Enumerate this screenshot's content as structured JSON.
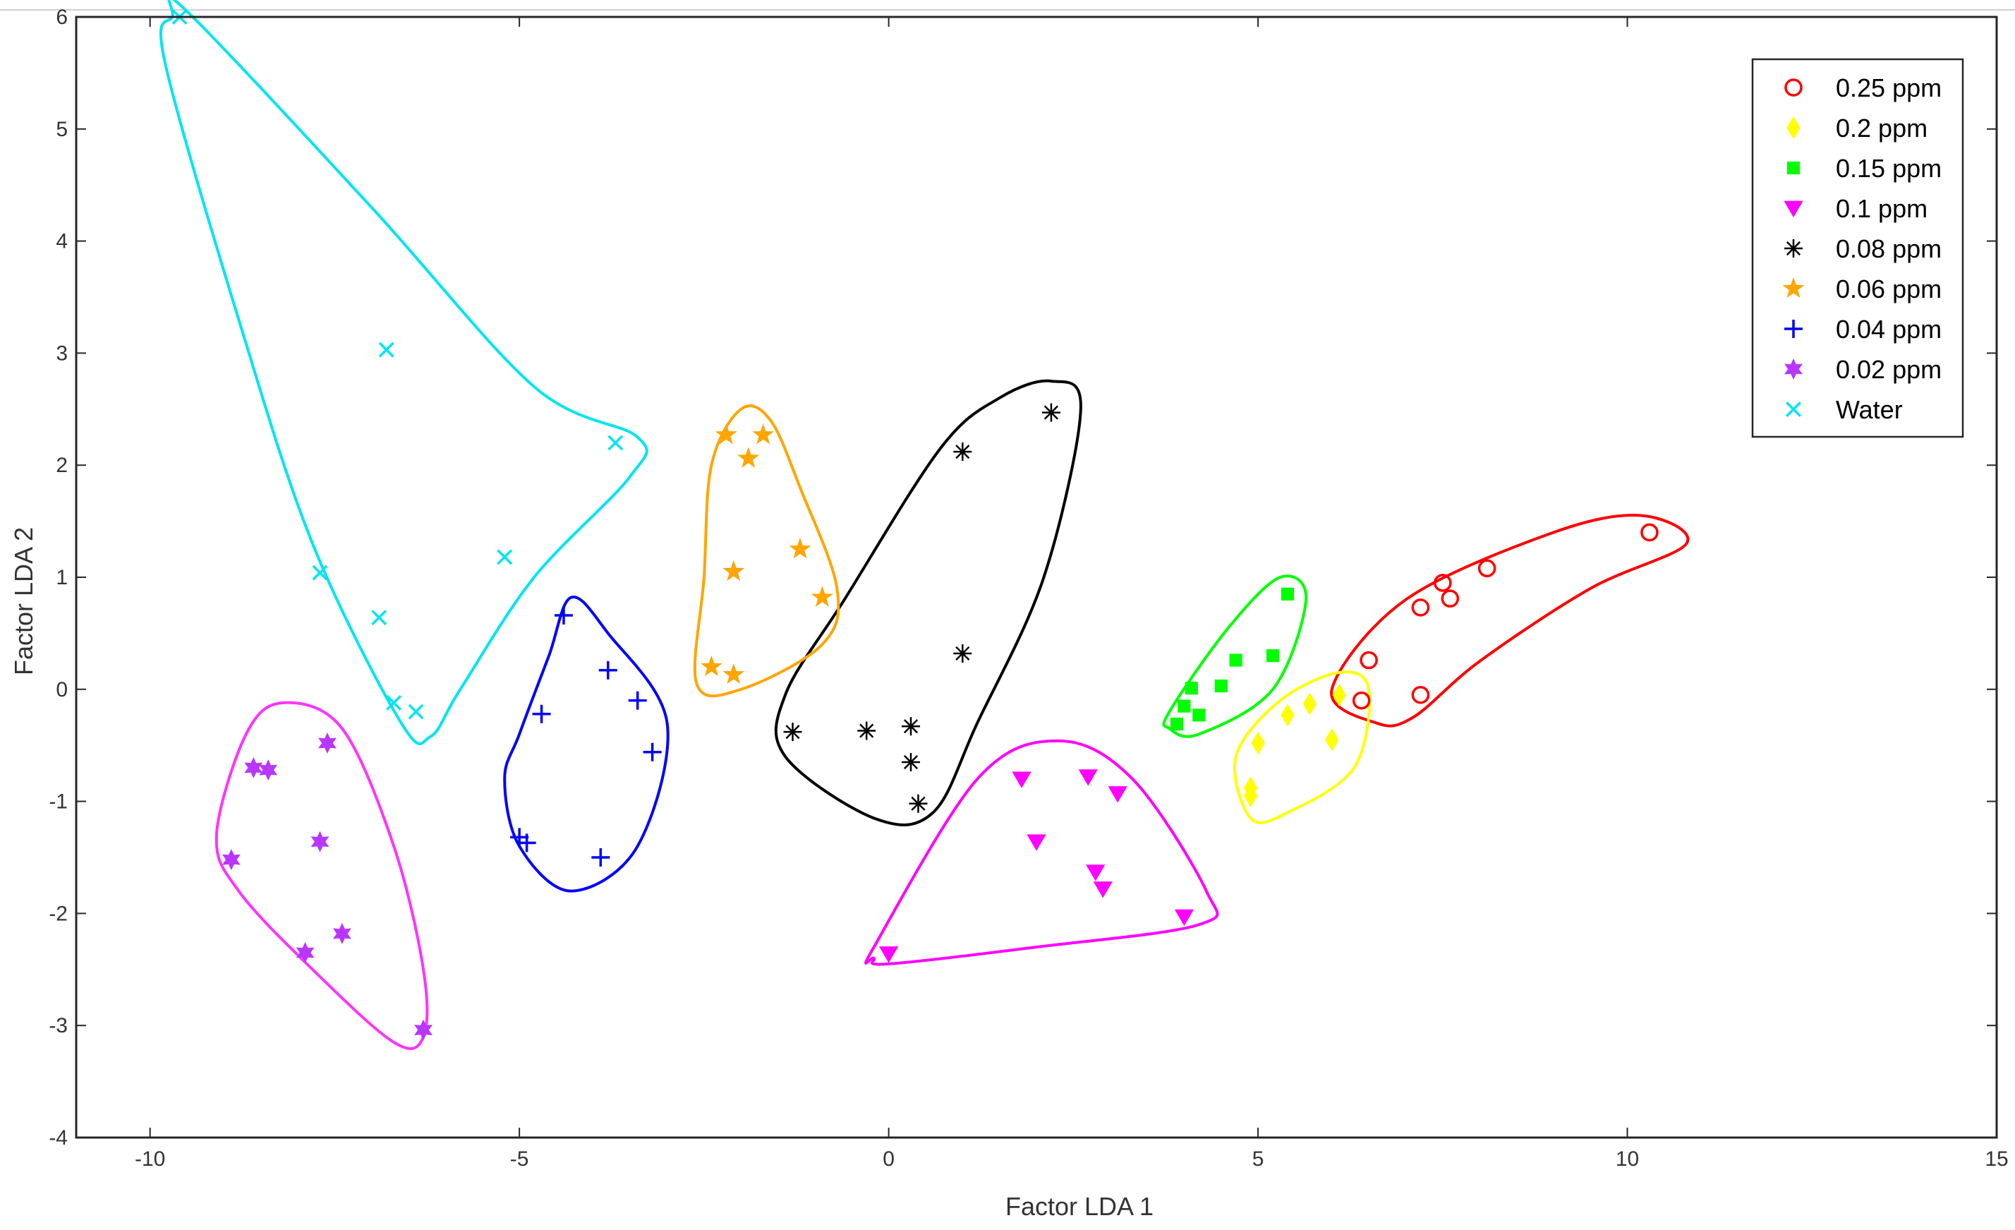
{
  "chart_data": {
    "type": "scatter",
    "xlabel": "Factor LDA 1",
    "ylabel": "Factor LDA 2",
    "xlim": [
      -11,
      15
    ],
    "ylim": [
      -4,
      6
    ],
    "xticks": [
      -10,
      -5,
      0,
      5,
      10,
      15
    ],
    "yticks": [
      -4,
      -3,
      -2,
      -1,
      0,
      1,
      2,
      3,
      4,
      5,
      6
    ],
    "xtick_labels": [
      "-10",
      "-5",
      "0",
      "5",
      "10",
      "15"
    ],
    "ytick_labels": [
      "-4",
      "-3",
      "-2",
      "-1",
      "0",
      "1",
      "2",
      "3",
      "4",
      "5",
      "6"
    ],
    "grid": false,
    "legend_position": "top-right",
    "series": [
      {
        "name": "0.25 ppm",
        "marker": "circle",
        "color": "#ff0000",
        "x": [
          10.3,
          8.1,
          7.5,
          7.6,
          7.2,
          6.5,
          6.4,
          7.2
        ],
        "y": [
          1.4,
          1.08,
          0.95,
          0.81,
          0.73,
          0.26,
          -0.1,
          -0.05
        ]
      },
      {
        "name": "0.2 ppm",
        "marker": "diamond",
        "color": "#ffff00",
        "x": [
          6.1,
          5.7,
          5.4,
          5.0,
          4.9,
          6.0,
          4.9
        ],
        "y": [
          -0.05,
          -0.13,
          -0.23,
          -0.48,
          -0.95,
          -0.45,
          -0.88
        ]
      },
      {
        "name": "0.15 ppm",
        "marker": "square",
        "color": "#00ff00",
        "x": [
          5.4,
          5.2,
          4.7,
          4.5,
          4.1,
          4.0,
          4.2,
          3.9
        ],
        "y": [
          0.85,
          0.3,
          0.26,
          0.03,
          0.01,
          -0.15,
          -0.23,
          -0.31
        ]
      },
      {
        "name": "0.1 ppm",
        "marker": "triangle-down",
        "color": "#ff00ff",
        "x": [
          1.8,
          2.7,
          3.1,
          2.0,
          2.8,
          2.9,
          4.0,
          0.0
        ],
        "y": [
          -0.8,
          -0.78,
          -0.93,
          -1.36,
          -1.63,
          -1.78,
          -2.03,
          -2.36
        ]
      },
      {
        "name": "0.08 ppm",
        "marker": "asterisk",
        "color": "#000000",
        "x": [
          2.2,
          1.0,
          1.0,
          -1.3,
          -0.3,
          0.3,
          0.3,
          0.4
        ],
        "y": [
          2.47,
          2.12,
          0.32,
          -0.38,
          -0.37,
          -0.33,
          -0.65,
          -1.02
        ]
      },
      {
        "name": "0.06 ppm",
        "marker": "star",
        "color": "#ffa500",
        "x": [
          -2.2,
          -1.7,
          -1.9,
          -1.2,
          -2.1,
          -0.9,
          -2.4,
          -2.1
        ],
        "y": [
          2.27,
          2.27,
          2.06,
          1.25,
          1.05,
          0.82,
          0.2,
          0.13
        ]
      },
      {
        "name": "0.04 ppm",
        "marker": "plus",
        "color": "#0000ff",
        "x": [
          -4.4,
          -3.8,
          -3.4,
          -4.7,
          -3.2,
          -5.0,
          -4.9,
          -3.9
        ],
        "y": [
          0.66,
          0.17,
          -0.1,
          -0.22,
          -0.56,
          -1.32,
          -1.37,
          -1.5
        ]
      },
      {
        "name": "0.02 ppm",
        "marker": "hexagram",
        "color": "#b836ff",
        "x": [
          -7.6,
          -8.6,
          -8.4,
          -7.7,
          -8.9,
          -7.4,
          -7.9,
          -6.3
        ],
        "y": [
          -0.48,
          -0.7,
          -0.72,
          -1.36,
          -1.52,
          -2.18,
          -2.35,
          -3.04
        ]
      },
      {
        "name": "Water",
        "marker": "x",
        "color": "#00e5f0",
        "x": [
          -9.6,
          -6.8,
          -3.7,
          -5.2,
          -7.7,
          -6.9,
          -6.7,
          -6.4
        ],
        "y": [
          6.0,
          3.03,
          2.2,
          1.18,
          1.04,
          0.64,
          -0.12,
          -0.2
        ]
      }
    ],
    "hulls": [
      {
        "color": "#ff0000",
        "points": [
          [
            6.6,
            -0.3
          ],
          [
            6.0,
            0.0
          ],
          [
            7.0,
            0.8
          ],
          [
            9.0,
            1.4
          ],
          [
            10.2,
            1.55
          ],
          [
            10.8,
            1.3
          ],
          [
            9.5,
            0.9
          ],
          [
            8.0,
            0.25
          ],
          [
            7.1,
            -0.25
          ]
        ]
      },
      {
        "color": "#ffff00",
        "points": [
          [
            4.7,
            -0.6
          ],
          [
            5.3,
            -0.1
          ],
          [
            6.1,
            0.15
          ],
          [
            6.5,
            0.0
          ],
          [
            6.3,
            -0.7
          ],
          [
            5.4,
            -1.1
          ],
          [
            4.9,
            -1.15
          ]
        ]
      },
      {
        "color": "#00ff00",
        "points": [
          [
            3.8,
            -0.2
          ],
          [
            4.6,
            0.55
          ],
          [
            5.3,
            1.0
          ],
          [
            5.65,
            0.8
          ],
          [
            5.2,
            0.0
          ],
          [
            4.2,
            -0.4
          ],
          [
            3.8,
            -0.35
          ]
        ]
      },
      {
        "color": "#ff00ff",
        "points": [
          [
            -0.2,
            -2.3
          ],
          [
            1.2,
            -0.8
          ],
          [
            2.3,
            -0.46
          ],
          [
            3.3,
            -0.8
          ],
          [
            4.3,
            -1.8
          ],
          [
            4.2,
            -2.1
          ],
          [
            2.0,
            -2.3
          ],
          [
            0.0,
            -2.45
          ],
          [
            -0.2,
            -2.4
          ]
        ]
      },
      {
        "color": "#000000",
        "points": [
          [
            0.7,
            2.15
          ],
          [
            1.5,
            2.6
          ],
          [
            2.2,
            2.75
          ],
          [
            2.6,
            2.5
          ],
          [
            2.1,
            1.0
          ],
          [
            1.2,
            -0.3
          ],
          [
            0.6,
            -1.1
          ],
          [
            -0.2,
            -1.15
          ],
          [
            -1.4,
            -0.6
          ],
          [
            -1.4,
            -0.05
          ],
          [
            -0.6,
            0.8
          ]
        ]
      },
      {
        "color": "#ffa500",
        "points": [
          [
            -2.4,
            2.0
          ],
          [
            -2.0,
            2.5
          ],
          [
            -1.6,
            2.4
          ],
          [
            -1.2,
            1.8
          ],
          [
            -0.7,
            0.9
          ],
          [
            -0.9,
            0.4
          ],
          [
            -2.0,
            0.0
          ],
          [
            -2.6,
            0.05
          ],
          [
            -2.5,
            1.0
          ]
        ]
      },
      {
        "color": "#0000ff",
        "points": [
          [
            -5.0,
            -0.4
          ],
          [
            -4.6,
            0.3
          ],
          [
            -4.3,
            0.82
          ],
          [
            -3.8,
            0.5
          ],
          [
            -3.0,
            -0.3
          ],
          [
            -3.4,
            -1.4
          ],
          [
            -4.3,
            -1.8
          ],
          [
            -5.0,
            -1.4
          ],
          [
            -5.2,
            -0.8
          ]
        ]
      },
      {
        "color": "#ff33ff",
        "points": [
          [
            -9.1,
            -1.3
          ],
          [
            -8.7,
            -0.4
          ],
          [
            -8.2,
            -0.12
          ],
          [
            -7.4,
            -0.35
          ],
          [
            -6.7,
            -1.4
          ],
          [
            -6.3,
            -2.5
          ],
          [
            -6.3,
            -3.1
          ],
          [
            -6.7,
            -3.15
          ],
          [
            -7.8,
            -2.5
          ],
          [
            -8.8,
            -1.8
          ]
        ]
      },
      {
        "color": "#00e5f0",
        "points": [
          [
            -9.7,
            6.0
          ],
          [
            -9.5,
            6.05
          ],
          [
            -7.0,
            4.3
          ],
          [
            -4.8,
            2.7
          ],
          [
            -3.4,
            2.25
          ],
          [
            -3.5,
            1.9
          ],
          [
            -4.8,
            1.0
          ],
          [
            -5.8,
            0.0
          ],
          [
            -6.2,
            -0.42
          ],
          [
            -6.6,
            -0.3
          ],
          [
            -7.8,
            1.3
          ],
          [
            -8.8,
            3.3
          ],
          [
            -9.8,
            5.6
          ]
        ]
      }
    ]
  }
}
